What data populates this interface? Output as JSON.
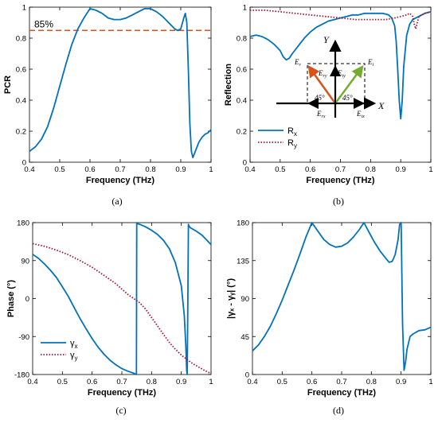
{
  "colors": {
    "blue": "#0072BD",
    "orange": "#D95319",
    "darkred": "#A2142F",
    "green": "#77AC30",
    "black": "#000000"
  },
  "panels": [
    {
      "id": "a",
      "caption": "(a)"
    },
    {
      "id": "b",
      "caption": "(b)"
    },
    {
      "id": "c",
      "caption": "(c)"
    },
    {
      "id": "d",
      "caption": "(d)"
    }
  ],
  "inset": {
    "labels": {
      "X": "X",
      "Y": "Y",
      "Er": "E",
      "Er_sub": "r",
      "Ei": "E",
      "Ei_sub": "i",
      "Ery": "E",
      "Ery_sub": "ry",
      "Eiy": "E",
      "Eiy_sub": "iy",
      "Erx": "E",
      "Erx_sub": "rx",
      "Eix": "E",
      "Eix_sub": "ix",
      "angle_left": "45°",
      "angle_right": "45°"
    }
  },
  "chart_data": [
    {
      "type": "line",
      "ylabel": "PCR",
      "xlabel": "Frequency (THz)",
      "xlim": [
        0.4,
        1.0
      ],
      "ylim": [
        0,
        1
      ],
      "xticks": [
        "0.4",
        "0.5",
        "0.6",
        "0.7",
        "0.8",
        "0.9",
        "1"
      ],
      "yticks": [
        "0",
        "0.2",
        "0.4",
        "0.6",
        "0.8",
        "1"
      ],
      "annotation": "85%",
      "threshold": 0.85,
      "series": [
        {
          "color": "#0072BD",
          "style": "solid",
          "x": [
            0.4,
            0.42,
            0.44,
            0.46,
            0.48,
            0.5,
            0.52,
            0.54,
            0.56,
            0.58,
            0.6,
            0.62,
            0.64,
            0.66,
            0.68,
            0.7,
            0.72,
            0.74,
            0.76,
            0.78,
            0.8,
            0.82,
            0.84,
            0.86,
            0.88,
            0.89,
            0.9,
            0.91,
            0.915,
            0.92,
            0.925,
            0.93,
            0.935,
            0.94,
            0.95,
            0.96,
            0.97,
            0.98,
            0.99,
            1.0
          ],
          "y": [
            0.07,
            0.1,
            0.15,
            0.23,
            0.35,
            0.49,
            0.63,
            0.76,
            0.86,
            0.93,
            0.99,
            0.98,
            0.96,
            0.93,
            0.92,
            0.92,
            0.93,
            0.95,
            0.97,
            0.99,
            0.99,
            0.97,
            0.94,
            0.9,
            0.86,
            0.85,
            0.86,
            0.93,
            0.96,
            0.9,
            0.6,
            0.25,
            0.07,
            0.03,
            0.08,
            0.13,
            0.16,
            0.18,
            0.19,
            0.21
          ]
        }
      ]
    },
    {
      "type": "line",
      "ylabel": "Reflection",
      "xlabel": "Frequency (THz)",
      "xlim": [
        0.4,
        1.0
      ],
      "ylim": [
        0,
        1
      ],
      "xticks": [
        "0.4",
        "0.5",
        "0.6",
        "0.7",
        "0.8",
        "0.9",
        "1"
      ],
      "yticks": [
        "0",
        "0.2",
        "0.4",
        "0.6",
        "0.8",
        "1"
      ],
      "legend_position": "bottom-left",
      "series": [
        {
          "name": "R",
          "sub": "x",
          "color": "#0072BD",
          "style": "solid",
          "x": [
            0.4,
            0.42,
            0.44,
            0.46,
            0.48,
            0.5,
            0.51,
            0.52,
            0.53,
            0.54,
            0.56,
            0.58,
            0.6,
            0.62,
            0.64,
            0.66,
            0.68,
            0.7,
            0.72,
            0.74,
            0.76,
            0.78,
            0.8,
            0.82,
            0.84,
            0.86,
            0.87,
            0.88,
            0.885,
            0.89,
            0.895,
            0.9,
            0.905,
            0.91,
            0.92,
            0.93,
            0.94,
            0.96,
            0.98,
            1.0
          ],
          "y": [
            0.81,
            0.82,
            0.81,
            0.79,
            0.76,
            0.72,
            0.68,
            0.66,
            0.67,
            0.7,
            0.75,
            0.8,
            0.84,
            0.87,
            0.89,
            0.91,
            0.92,
            0.93,
            0.94,
            0.95,
            0.95,
            0.96,
            0.96,
            0.96,
            0.96,
            0.95,
            0.93,
            0.88,
            0.78,
            0.6,
            0.4,
            0.28,
            0.4,
            0.62,
            0.82,
            0.89,
            0.92,
            0.94,
            0.96,
            0.97
          ]
        },
        {
          "name": "R",
          "sub": "y",
          "color": "#A2142F",
          "style": "dotted",
          "x": [
            0.4,
            0.45,
            0.5,
            0.55,
            0.6,
            0.65,
            0.7,
            0.75,
            0.8,
            0.85,
            0.88,
            0.9,
            0.92,
            0.93,
            0.94,
            0.945,
            0.95,
            0.955,
            0.96,
            0.98,
            1.0
          ],
          "y": [
            0.98,
            0.98,
            0.97,
            0.96,
            0.95,
            0.94,
            0.93,
            0.92,
            0.92,
            0.92,
            0.93,
            0.94,
            0.95,
            0.96,
            0.94,
            0.89,
            0.86,
            0.9,
            0.94,
            0.96,
            0.97
          ]
        }
      ]
    },
    {
      "type": "line",
      "ylabel": "Phase (°)",
      "xlabel": "Frequency (THz)",
      "xlim": [
        0.4,
        1.0
      ],
      "ylim": [
        -180,
        180
      ],
      "xticks": [
        "0.4",
        "0.5",
        "0.6",
        "0.7",
        "0.8",
        "0.9",
        "1"
      ],
      "yticks": [
        "-180",
        "-90",
        "0",
        "90",
        "180"
      ],
      "legend_position": "bottom-left",
      "series": [
        {
          "name": "γ",
          "sub": "x",
          "color": "#0072BD",
          "style": "solid",
          "x": [
            0.4,
            0.42,
            0.44,
            0.46,
            0.48,
            0.5,
            0.52,
            0.54,
            0.56,
            0.58,
            0.6,
            0.62,
            0.64,
            0.66,
            0.68,
            0.7,
            0.72,
            0.74,
            0.749,
            0.75,
            0.751,
            0.76,
            0.78,
            0.8,
            0.82,
            0.84,
            0.86,
            0.88,
            0.9,
            0.91,
            0.915,
            0.918,
            0.92,
            0.922,
            0.924,
            0.926,
            0.93,
            0.95,
            0.97,
            1.0
          ],
          "y": [
            105,
            95,
            82,
            67,
            50,
            28,
            5,
            -22,
            -48,
            -72,
            -95,
            -115,
            -132,
            -146,
            -157,
            -166,
            -172,
            -177,
            -180,
            180,
            178,
            176,
            170,
            162,
            152,
            138,
            118,
            85,
            30,
            -40,
            -110,
            -170,
            -180,
            0,
            176,
            172,
            168,
            160,
            150,
            128
          ]
        },
        {
          "name": "γ",
          "sub": "y",
          "color": "#A2142F",
          "style": "dotted",
          "x": [
            0.4,
            0.44,
            0.48,
            0.52,
            0.56,
            0.6,
            0.64,
            0.68,
            0.72,
            0.74,
            0.76,
            0.78,
            0.8,
            0.82,
            0.84,
            0.86,
            0.88,
            0.9,
            0.92,
            0.94,
            0.96,
            0.98,
            1.0
          ],
          "y": [
            130,
            124,
            115,
            104,
            90,
            74,
            55,
            35,
            10,
            0,
            -10,
            -25,
            -45,
            -65,
            -85,
            -104,
            -120,
            -134,
            -145,
            -155,
            -163,
            -171,
            -178
          ]
        }
      ]
    },
    {
      "type": "line",
      "ylabel": "|γₓ - γᵧ| (°)",
      "xlabel": "Frequency (THz)",
      "xlim": [
        0.4,
        1.0
      ],
      "ylim": [
        0,
        180
      ],
      "xticks": [
        "0.4",
        "0.5",
        "0.6",
        "0.7",
        "0.8",
        "0.9",
        "1"
      ],
      "yticks": [
        "0",
        "45",
        "90",
        "135",
        "180"
      ],
      "series": [
        {
          "color": "#0072BD",
          "style": "solid",
          "x": [
            0.4,
            0.42,
            0.44,
            0.46,
            0.48,
            0.5,
            0.52,
            0.54,
            0.56,
            0.58,
            0.6,
            0.62,
            0.64,
            0.66,
            0.68,
            0.7,
            0.72,
            0.74,
            0.76,
            0.775,
            0.79,
            0.81,
            0.83,
            0.85,
            0.86,
            0.87,
            0.88,
            0.89,
            0.895,
            0.9,
            0.905,
            0.91,
            0.915,
            0.92,
            0.93,
            0.94,
            0.95,
            0.96,
            0.98,
            1.0
          ],
          "y": [
            28,
            35,
            45,
            57,
            72,
            88,
            106,
            124,
            143,
            163,
            180,
            170,
            160,
            154,
            151,
            152,
            156,
            163,
            172,
            180,
            170,
            157,
            146,
            137,
            133,
            134,
            142,
            160,
            178,
            180,
            60,
            5,
            15,
            30,
            45,
            48,
            50,
            52,
            53,
            56
          ]
        }
      ]
    }
  ]
}
